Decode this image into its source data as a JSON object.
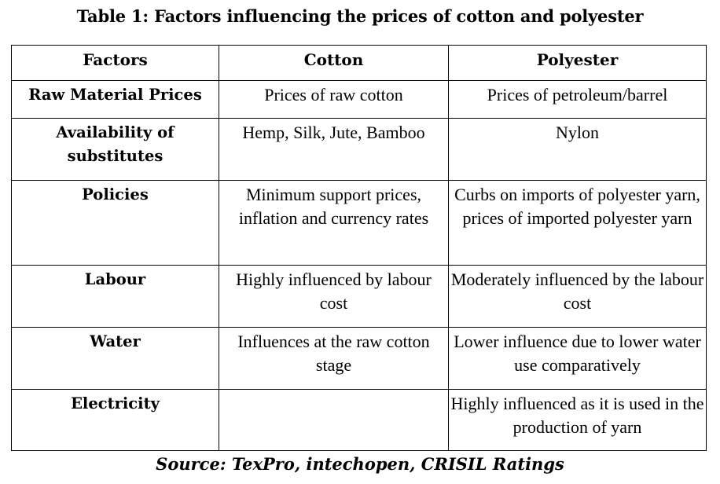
{
  "title": "Table 1: Factors influencing the prices of cotton and polyester",
  "table": {
    "headers": [
      "Factors",
      "Cotton",
      "Polyester"
    ],
    "rows": [
      {
        "factor": "Raw Material Prices",
        "cotton": "Prices of raw cotton",
        "polyester": "Prices of petroleum/barrel"
      },
      {
        "factor": "Availability of substitutes",
        "cotton": "Hemp, Silk, Jute, Bamboo",
        "polyester": "Nylon"
      },
      {
        "factor": "Policies",
        "cotton": "Minimum support prices, inflation and currency rates",
        "polyester": "Curbs on imports of polyester yarn, prices of imported polyester yarn"
      },
      {
        "factor": "Labour",
        "cotton": "Highly influenced by labour cost",
        "polyester": "Moderately influenced by the labour cost"
      },
      {
        "factor": "Water",
        "cotton": "Influences at the raw cotton stage",
        "polyester": "Lower influence due to lower water use comparatively"
      },
      {
        "factor": "Electricity",
        "cotton": "",
        "polyester": "Highly influenced as it is used in the production of yarn"
      }
    ]
  },
  "source": "Source: TexPro, intechopen, CRISIL Ratings"
}
